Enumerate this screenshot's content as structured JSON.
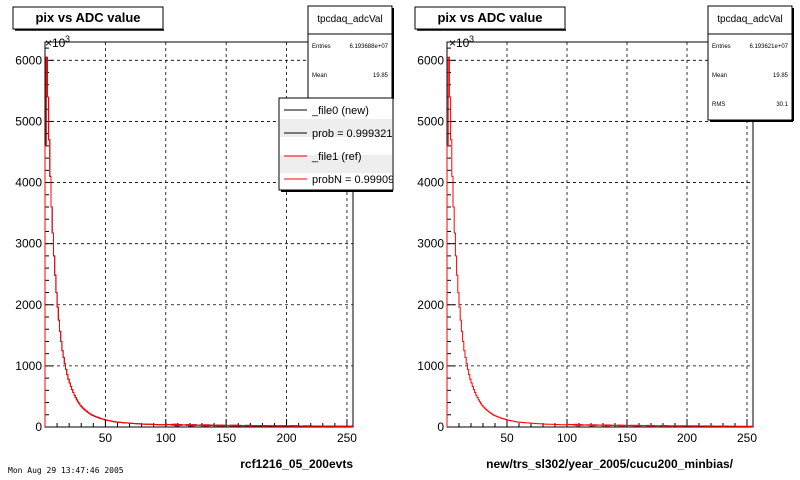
{
  "footer_text": "Mon Aug 29 13:47:46 2005",
  "chart_data": [
    {
      "type": "histogram",
      "title": "pix vs ADC value",
      "xlabel": "rcf1216_05_200evts",
      "ylabel": "",
      "y_multiplier": "×10",
      "y_multiplier_exponent": "3",
      "xlim": [
        0,
        255
      ],
      "ylim": [
        0,
        6300
      ],
      "xticks": [
        50,
        100,
        150,
        200,
        250
      ],
      "yticks": [
        0,
        1000,
        2000,
        3000,
        4000,
        5000,
        6000
      ],
      "grid": true,
      "stats": {
        "name": "tpcdaq_adcVal",
        "rows": [
          {
            "label": "Entries",
            "value": "6.193688e+07"
          },
          {
            "label": "Mean",
            "value": "19.85"
          }
        ]
      },
      "legend": {
        "placement": "top-right",
        "entries": [
          {
            "text": "_file0 (new)",
            "color": "#000000"
          },
          {
            "text": "prob = 0.999321",
            "color": "#000000"
          },
          {
            "text": "_file1 (ref)",
            "color": "#ff0000"
          },
          {
            "text": "probN = 0.99909",
            "color": "#ff0000"
          }
        ]
      },
      "series": [
        {
          "name": "_file0 (new)",
          "color": "#000000",
          "values_sampled_x": [
            1,
            2,
            3,
            4,
            5,
            6,
            8,
            10,
            12,
            15,
            20,
            25,
            30,
            40,
            50,
            60,
            80,
            100,
            120,
            150,
            200,
            255
          ],
          "values_y": [
            4600,
            6050,
            5400,
            4700,
            4100,
            3600,
            2800,
            2200,
            1750,
            1250,
            780,
            520,
            350,
            190,
            120,
            80,
            50,
            35,
            28,
            22,
            15,
            10
          ]
        },
        {
          "name": "_file1 (ref)",
          "color": "#ff0000",
          "values_sampled_x": [
            1,
            2,
            3,
            4,
            5,
            6,
            8,
            10,
            12,
            15,
            20,
            25,
            30,
            40,
            50,
            60,
            80,
            100,
            120,
            150,
            200,
            255
          ],
          "values_y": [
            4600,
            6050,
            5400,
            4700,
            4100,
            3600,
            2800,
            2200,
            1750,
            1250,
            780,
            520,
            350,
            190,
            120,
            80,
            50,
            35,
            28,
            22,
            15,
            10
          ]
        }
      ]
    },
    {
      "type": "histogram",
      "title": "pix vs ADC value",
      "xlabel": "new/trs_sl302/year_2005/cucu200_minbias/",
      "ylabel": "",
      "y_multiplier": "×10",
      "y_multiplier_exponent": "3",
      "xlim": [
        0,
        255
      ],
      "ylim": [
        0,
        6300
      ],
      "xticks": [
        50,
        100,
        150,
        200,
        250
      ],
      "yticks": [
        0,
        1000,
        2000,
        3000,
        4000,
        5000,
        6000
      ],
      "grid": true,
      "stats": {
        "name": "tpcdaq_adcVal",
        "rows": [
          {
            "label": "Entries",
            "value": "6.193621e+07"
          },
          {
            "label": "Mean",
            "value": "19.85"
          },
          {
            "label": "RMS",
            "value": "30.1"
          }
        ]
      },
      "series": [
        {
          "name": "",
          "color": "#ff0000",
          "values_sampled_x": [
            1,
            2,
            3,
            4,
            5,
            6,
            8,
            10,
            12,
            15,
            20,
            25,
            30,
            40,
            50,
            60,
            80,
            100,
            120,
            150,
            200,
            255
          ],
          "values_y": [
            4600,
            6050,
            5400,
            4700,
            4100,
            3600,
            2800,
            2200,
            1750,
            1250,
            780,
            520,
            350,
            190,
            120,
            80,
            50,
            35,
            28,
            22,
            15,
            10
          ]
        }
      ]
    }
  ]
}
